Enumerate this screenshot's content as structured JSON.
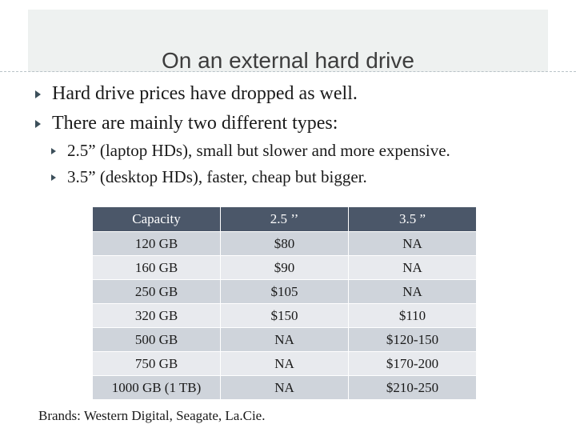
{
  "slide": {
    "title": "On an external hard drive",
    "bullets": [
      "Hard drive prices have dropped as well.",
      "There are mainly two different types:"
    ],
    "sub_bullets": [
      "2.5” (laptop HDs), small but slower and more expensive.",
      "3.5” (desktop HDs), faster, cheap but bigger."
    ],
    "table": {
      "headers": [
        "Capacity",
        "2.5 ’’",
        "3.5 ”"
      ],
      "rows": [
        [
          "120 GB",
          "$80",
          "NA"
        ],
        [
          "160 GB",
          "$90",
          "NA"
        ],
        [
          "250 GB",
          "$105",
          "NA"
        ],
        [
          "320 GB",
          "$150",
          "$110"
        ],
        [
          "500 GB",
          "NA",
          "$120-150"
        ],
        [
          "750 GB",
          "NA",
          "$170-200"
        ],
        [
          "1000 GB (1 TB)",
          "NA",
          "$210-250"
        ]
      ]
    },
    "footnote": "Brands: Western Digital, Seagate, La.Cie.",
    "colors": {
      "title_band": "#eef1f0",
      "header_bg": "#4b5769",
      "row_dark": "#cfd4db",
      "row_light": "#e8eaee",
      "bullet": "#3c4f5a"
    },
    "icons": {
      "bullet": "triangle-bullet-icon"
    }
  }
}
